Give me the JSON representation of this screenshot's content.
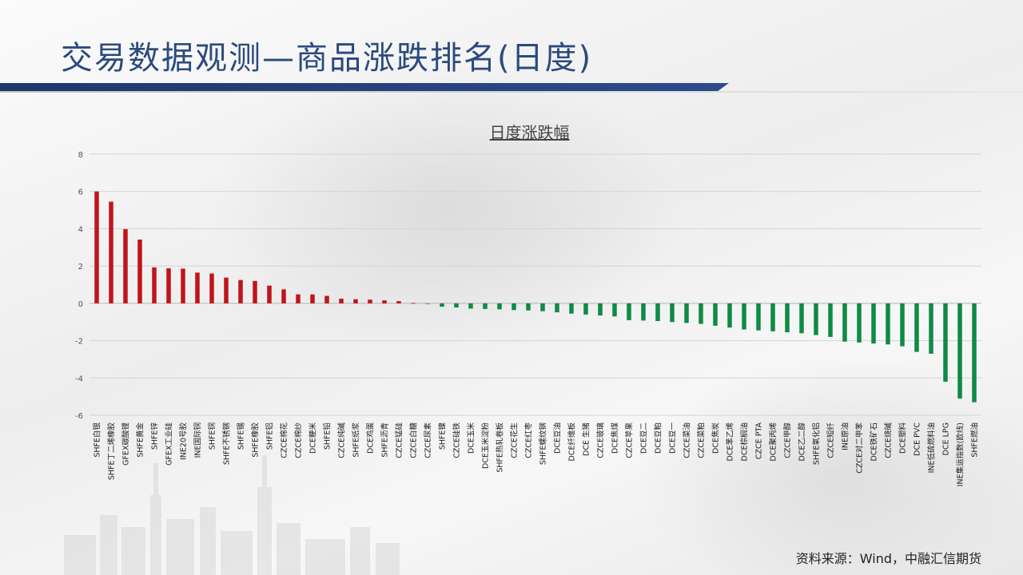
{
  "header": {
    "title": "交易数据观测—商品涨跌排名(日度)"
  },
  "footer": {
    "source": "资料来源：Wind，中融汇信期货"
  },
  "colors": {
    "up": "#c0141b",
    "down": "#0f8a45",
    "title": "#2b4a7e"
  },
  "chart_data": {
    "type": "bar",
    "title": "日度涨跌幅",
    "xlabel": "",
    "ylabel": "",
    "ylim": [
      -6,
      8
    ],
    "yticks": [
      -6,
      -4,
      -2,
      0,
      2,
      4,
      6,
      8
    ],
    "grid": true,
    "legend": "none",
    "categories": [
      "SHFE白银",
      "SHFE丁二烯橡胶",
      "GFEX碳酸锂",
      "SHFE黄金",
      "SHFE锌",
      "GFEX工业硅",
      "INE20号胶",
      "INE国际铜",
      "SHFE铜",
      "SHFE不锈钢",
      "SHFE锡",
      "SHFE橡胶",
      "SHFE铝",
      "CZCE棉花",
      "CZCE棉纱",
      "DCE粳米",
      "SHFE铅",
      "CZCE纯碱",
      "SHFE纸浆",
      "DCE鸡蛋",
      "SHFE沥青",
      "CZCE锰硅",
      "CZCE白糖",
      "CZCE尿素",
      "SHFE镍",
      "CZCE硅铁",
      "DCE玉米",
      "DCE玉米淀粉",
      "SHFE热轧卷板",
      "CZCE花生",
      "CZCE红枣",
      "SHFE螺纹钢",
      "DCE豆油",
      "DCE纤维板",
      "DCE 生猪",
      "CZCE玻璃",
      "DCE焦煤",
      "CZCE苹果",
      "DCE豆二",
      "DCE豆粕",
      "DCE豆一",
      "CZCE菜油",
      "CZCE菜粕",
      "DCE焦炭",
      "DCE苯乙烯",
      "DCE棕榈油",
      "CZCE PTA",
      "DCE聚丙烯",
      "CZCE甲醇",
      "DCE乙二醇",
      "SHFE氧化铝",
      "CZCE短纤",
      "INE原油",
      "CZCE对二甲苯",
      "DCE铁矿石",
      "CZCE烧碱",
      "DCE塑料",
      "DCE PVC",
      "INE低硫燃料油",
      "DCE LPG",
      "INE集运指数(欧线)",
      "SHFE燃油"
    ],
    "values": [
      6.0,
      5.45,
      3.98,
      3.42,
      1.93,
      1.88,
      1.86,
      1.65,
      1.6,
      1.38,
      1.25,
      1.2,
      0.95,
      0.75,
      0.48,
      0.48,
      0.4,
      0.25,
      0.22,
      0.2,
      0.16,
      0.12,
      0.02,
      -0.02,
      -0.18,
      -0.22,
      -0.28,
      -0.3,
      -0.32,
      -0.36,
      -0.38,
      -0.42,
      -0.48,
      -0.55,
      -0.6,
      -0.65,
      -0.7,
      -0.9,
      -0.92,
      -0.95,
      -1.0,
      -1.05,
      -1.1,
      -1.2,
      -1.3,
      -1.4,
      -1.45,
      -1.5,
      -1.55,
      -1.6,
      -1.7,
      -1.8,
      -2.05,
      -2.1,
      -2.15,
      -2.2,
      -2.3,
      -2.6,
      -2.7,
      -4.2,
      -5.1,
      -5.3
    ]
  }
}
